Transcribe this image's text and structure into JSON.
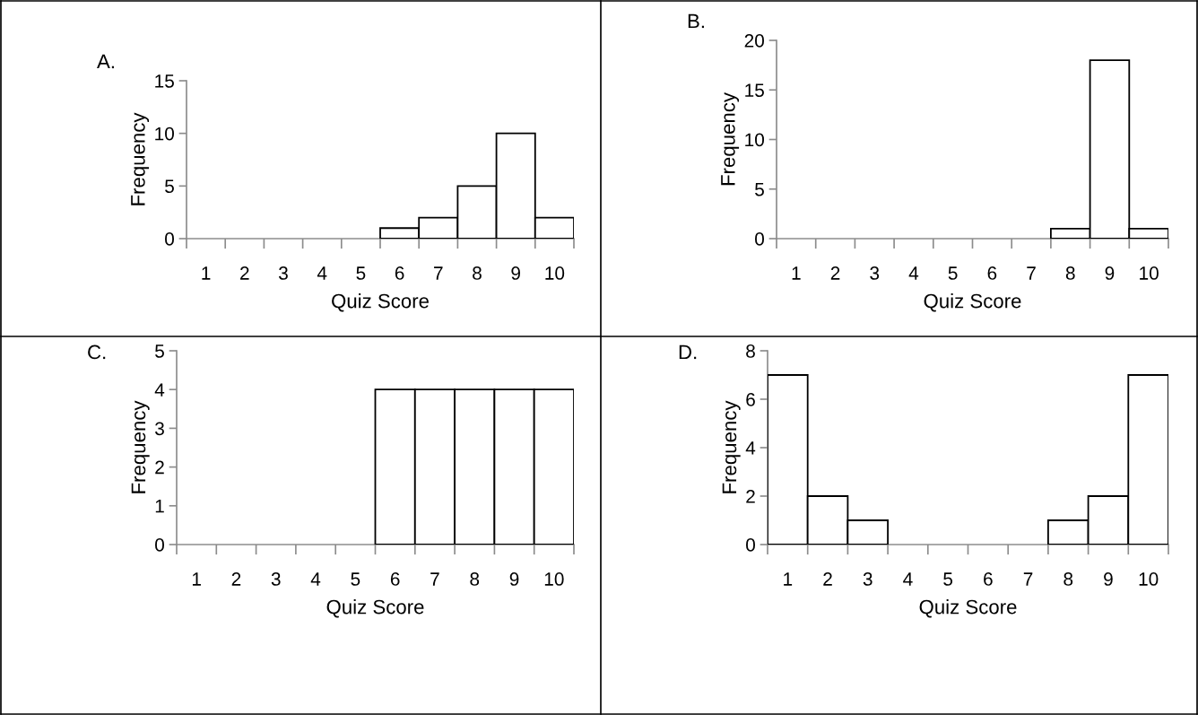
{
  "chart_data": [
    {
      "type": "bar",
      "title": "A.",
      "xlabel": "Quiz Score",
      "ylabel": "Frequency",
      "categories": [
        "1",
        "2",
        "3",
        "4",
        "5",
        "6",
        "7",
        "8",
        "9",
        "10"
      ],
      "values": [
        0,
        0,
        0,
        0,
        0,
        1,
        2,
        5,
        10,
        2
      ],
      "color": "#ffffff",
      "ylim": [
        0,
        15
      ],
      "yticks": [
        0,
        5,
        10,
        15
      ],
      "grid": false,
      "legend": false
    },
    {
      "type": "bar",
      "title": "B.",
      "xlabel": "Quiz Score",
      "ylabel": "Frequency",
      "categories": [
        "1",
        "2",
        "3",
        "4",
        "5",
        "6",
        "7",
        "8",
        "9",
        "10"
      ],
      "values": [
        0,
        0,
        0,
        0,
        0,
        0,
        0,
        1,
        18,
        1
      ],
      "color": "#ffffff",
      "ylim": [
        0,
        20
      ],
      "yticks": [
        0,
        5,
        10,
        15,
        20
      ],
      "grid": false,
      "legend": false
    },
    {
      "type": "bar",
      "title": "C.",
      "xlabel": "Quiz Score",
      "ylabel": "Frequency",
      "categories": [
        "1",
        "2",
        "3",
        "4",
        "5",
        "6",
        "7",
        "8",
        "9",
        "10"
      ],
      "values": [
        0,
        0,
        0,
        0,
        0,
        4,
        4,
        4,
        4,
        4
      ],
      "color": "#ffffff",
      "ylim": [
        0,
        5
      ],
      "yticks": [
        0,
        1,
        2,
        3,
        4,
        5
      ],
      "grid": false,
      "legend": false
    },
    {
      "type": "bar",
      "title": "D.",
      "xlabel": "Quiz Score",
      "ylabel": "Frequency",
      "categories": [
        "1",
        "2",
        "3",
        "4",
        "5",
        "6",
        "7",
        "8",
        "9",
        "10"
      ],
      "values": [
        7,
        2,
        1,
        0,
        0,
        0,
        0,
        1,
        2,
        7
      ],
      "color": "#ffffff",
      "ylim": [
        0,
        8
      ],
      "yticks": [
        0,
        2,
        4,
        6,
        8
      ],
      "grid": false,
      "legend": false
    }
  ]
}
